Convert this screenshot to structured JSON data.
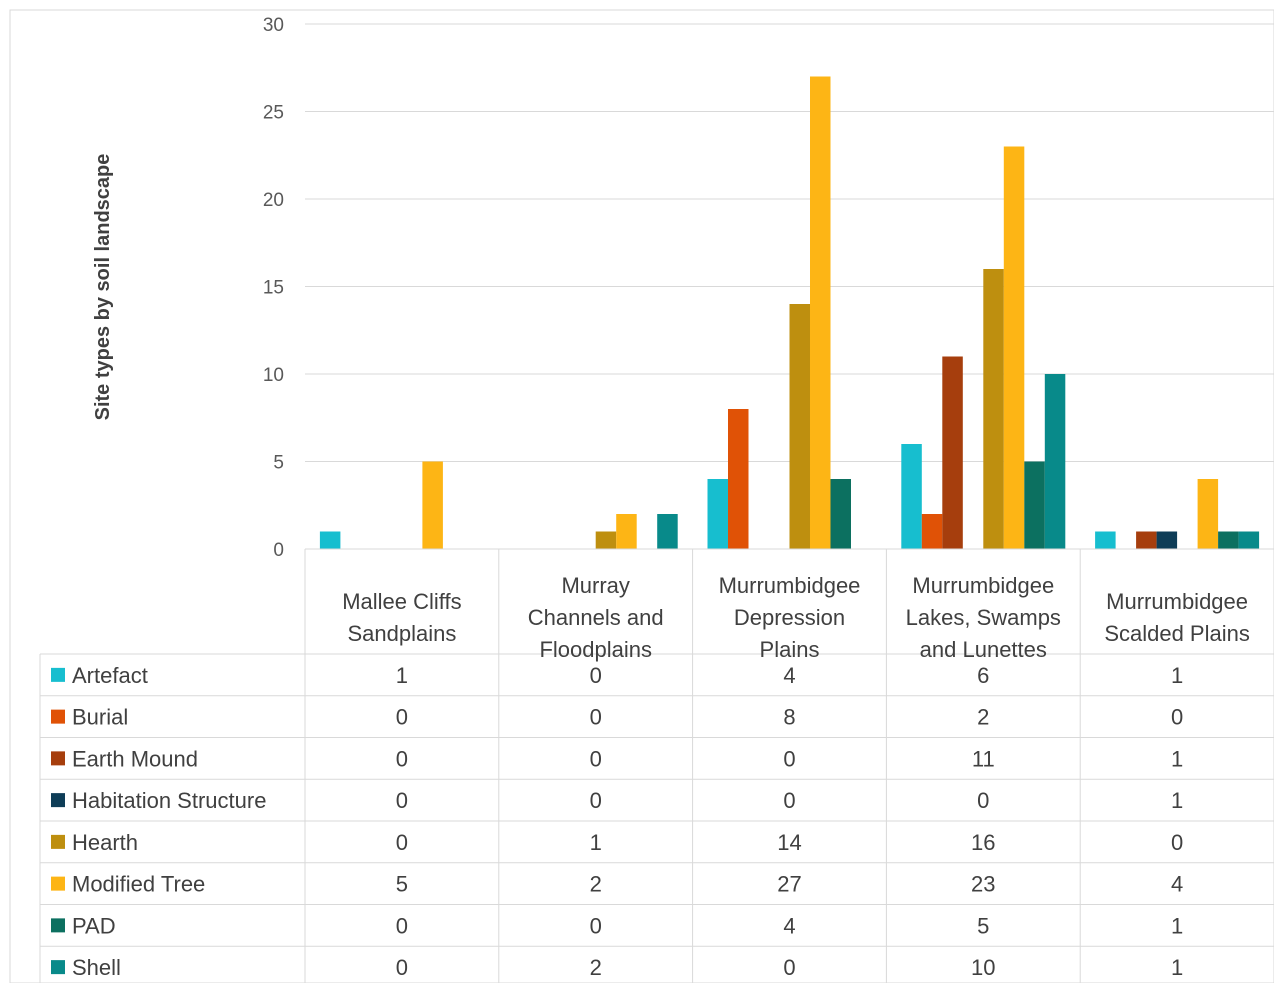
{
  "chart_data": {
    "type": "bar",
    "title": "",
    "ylabel": "Site types by soil landscape",
    "xlabel": "",
    "ylim": [
      0,
      30
    ],
    "yticks": [
      "0",
      "5",
      "10",
      "15",
      "20",
      "25",
      "30"
    ],
    "grid": true,
    "legend_placement": "data-table",
    "categories": [
      [
        "Mallee Cliffs",
        "Sandplains"
      ],
      [
        "Murray",
        "Channels and",
        "Floodplains"
      ],
      [
        "Murrumbidgee",
        "Depression",
        "Plains"
      ],
      [
        "Murrumbidgee",
        "Lakes, Swamps",
        "and Lunettes"
      ],
      [
        "Murrumbidgee",
        "Scalded Plains"
      ]
    ],
    "series": [
      {
        "name": "Artefact",
        "color": "#17BECF",
        "values": [
          1,
          0,
          4,
          6,
          1
        ]
      },
      {
        "name": "Burial",
        "color": "#E05206",
        "values": [
          0,
          0,
          8,
          2,
          0
        ]
      },
      {
        "name": "Earth Mound",
        "color": "#A63E0D",
        "values": [
          0,
          0,
          0,
          11,
          1
        ]
      },
      {
        "name": "Habitation Structure",
        "color": "#0E3D57",
        "values": [
          0,
          0,
          0,
          0,
          1
        ]
      },
      {
        "name": "Hearth",
        "color": "#BE8F0F",
        "values": [
          0,
          1,
          14,
          16,
          0
        ]
      },
      {
        "name": "Modified Tree",
        "color": "#FDB515",
        "values": [
          5,
          2,
          27,
          23,
          4
        ]
      },
      {
        "name": "PAD",
        "color": "#0C7060",
        "values": [
          0,
          0,
          4,
          5,
          1
        ]
      },
      {
        "name": "Shell",
        "color": "#088A8A",
        "values": [
          0,
          2,
          0,
          10,
          1
        ]
      }
    ]
  }
}
